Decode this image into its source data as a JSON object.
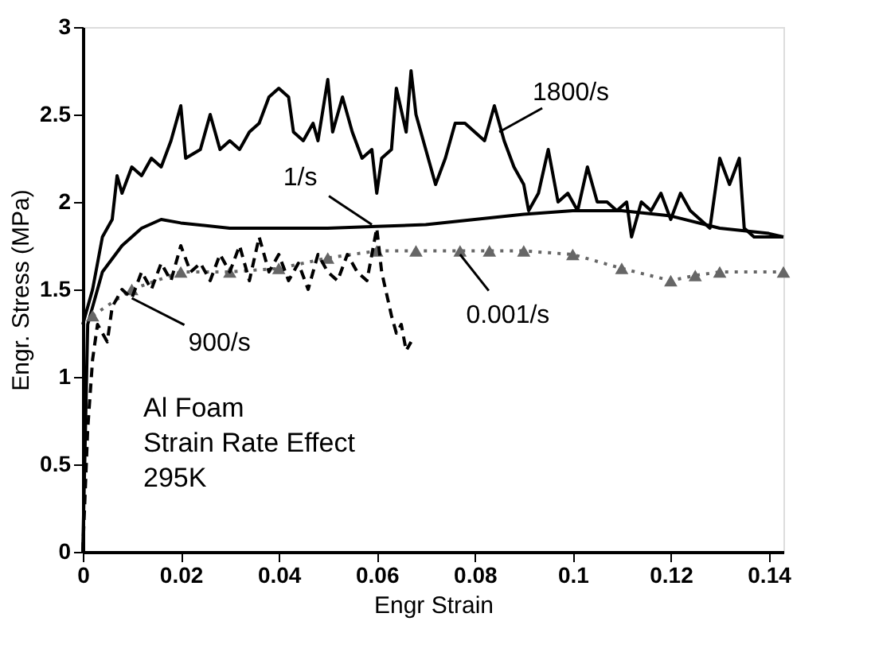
{
  "chart_data": {
    "type": "line",
    "xlabel": "Engr Strain",
    "ylabel": "Engr. Stress  (MPa)",
    "xlim": [
      0,
      0.143
    ],
    "ylim": [
      0,
      3
    ],
    "xticks": [
      0,
      0.02,
      0.04,
      0.06,
      0.08,
      0.1,
      0.12,
      0.14
    ],
    "yticks": [
      0,
      0.5,
      1,
      1.5,
      2,
      2.5,
      3
    ],
    "grid": false,
    "series": [
      {
        "color": "#000000",
        "line_style": "solid",
        "marker": "none",
        "x": [
          0,
          0.002,
          0.004,
          0.006,
          0.007,
          0.008,
          0.01,
          0.012,
          0.014,
          0.016,
          0.018,
          0.02,
          0.021,
          0.024,
          0.026,
          0.028,
          0.03,
          0.032,
          0.034,
          0.036,
          0.038,
          0.04,
          0.042,
          0.043,
          0.045,
          0.047,
          0.048,
          0.05,
          0.051,
          0.053,
          0.055,
          0.057,
          0.059,
          0.06,
          0.061,
          0.063,
          0.064,
          0.066,
          0.067,
          0.068,
          0.07,
          0.072,
          0.074,
          0.076,
          0.078,
          0.08,
          0.082,
          0.084,
          0.086,
          0.088,
          0.09,
          0.091,
          0.093,
          0.095,
          0.097,
          0.099,
          0.101,
          0.103,
          0.105,
          0.107,
          0.109,
          0.111,
          0.112,
          0.114,
          0.116,
          0.118,
          0.12,
          0.122,
          0.124,
          0.126,
          0.128,
          0.13,
          0.132,
          0.134,
          0.135,
          0.137,
          0.14,
          0.143
        ],
        "values": [
          1.3,
          1.5,
          1.8,
          1.9,
          2.15,
          2.05,
          2.2,
          2.15,
          2.25,
          2.2,
          2.35,
          2.55,
          2.25,
          2.3,
          2.5,
          2.3,
          2.35,
          2.3,
          2.4,
          2.45,
          2.6,
          2.65,
          2.6,
          2.4,
          2.35,
          2.45,
          2.35,
          2.7,
          2.4,
          2.6,
          2.4,
          2.25,
          2.3,
          2.05,
          2.25,
          2.3,
          2.65,
          2.4,
          2.75,
          2.5,
          2.3,
          2.1,
          2.25,
          2.45,
          2.45,
          2.4,
          2.35,
          2.55,
          2.35,
          2.2,
          2.1,
          1.95,
          2.05,
          2.3,
          2.0,
          2.05,
          1.95,
          2.2,
          2.0,
          2.0,
          1.95,
          2.0,
          1.8,
          2.0,
          1.95,
          2.05,
          1.9,
          2.05,
          1.95,
          1.9,
          1.85,
          2.25,
          2.1,
          2.25,
          1.85,
          1.8,
          1.8,
          1.8
        ]
      },
      {
        "color": "#000000",
        "line_style": "solid",
        "marker": "none",
        "x": [
          0,
          0.001,
          0.004,
          0.008,
          0.012,
          0.016,
          0.02,
          0.03,
          0.04,
          0.05,
          0.06,
          0.07,
          0.08,
          0.09,
          0.1,
          0.11,
          0.12,
          0.13,
          0.14,
          0.143
        ],
        "values": [
          0,
          1.3,
          1.6,
          1.75,
          1.85,
          1.9,
          1.88,
          1.85,
          1.85,
          1.85,
          1.86,
          1.87,
          1.9,
          1.93,
          1.95,
          1.95,
          1.92,
          1.85,
          1.82,
          1.8
        ]
      },
      {
        "color": "#666666",
        "line_style": "dotted",
        "marker": "triangle",
        "x": [
          0.002,
          0.01,
          0.02,
          0.03,
          0.04,
          0.05,
          0.06,
          0.068,
          0.077,
          0.083,
          0.09,
          0.1,
          0.11,
          0.12,
          0.125,
          0.13,
          0.143
        ],
        "values": [
          1.35,
          1.5,
          1.6,
          1.6,
          1.62,
          1.68,
          1.72,
          1.72,
          1.72,
          1.72,
          1.72,
          1.7,
          1.62,
          1.55,
          1.58,
          1.6,
          1.6
        ]
      },
      {
        "color": "#000000",
        "line_style": "dashed",
        "marker": "none",
        "x": [
          0,
          0.001,
          0.002,
          0.003,
          0.005,
          0.006,
          0.008,
          0.01,
          0.012,
          0.014,
          0.016,
          0.018,
          0.02,
          0.022,
          0.024,
          0.026,
          0.028,
          0.03,
          0.032,
          0.034,
          0.036,
          0.038,
          0.04,
          0.042,
          0.044,
          0.046,
          0.048,
          0.05,
          0.052,
          0.054,
          0.056,
          0.058,
          0.06,
          0.061,
          0.063,
          0.064,
          0.065,
          0.066,
          0.067
        ],
        "values": [
          0,
          0.7,
          1.1,
          1.3,
          1.2,
          1.4,
          1.5,
          1.45,
          1.6,
          1.5,
          1.65,
          1.55,
          1.75,
          1.6,
          1.65,
          1.55,
          1.7,
          1.6,
          1.75,
          1.55,
          1.8,
          1.6,
          1.7,
          1.55,
          1.65,
          1.5,
          1.7,
          1.6,
          1.55,
          1.7,
          1.6,
          1.55,
          1.85,
          1.6,
          1.35,
          1.25,
          1.3,
          1.15,
          1.2
        ]
      }
    ],
    "annotations": [
      {
        "text": "1800/s",
        "x": 0.085,
        "y": 2.4
      },
      {
        "text": "1/s",
        "x": 0.059,
        "y": 1.87
      },
      {
        "text": "0.001/s",
        "x": 0.077,
        "y": 1.7
      },
      {
        "text": "900/s",
        "x": 0.01,
        "y": 1.45
      },
      "Al Foam",
      "Strain Rate Effect",
      "295K"
    ]
  }
}
